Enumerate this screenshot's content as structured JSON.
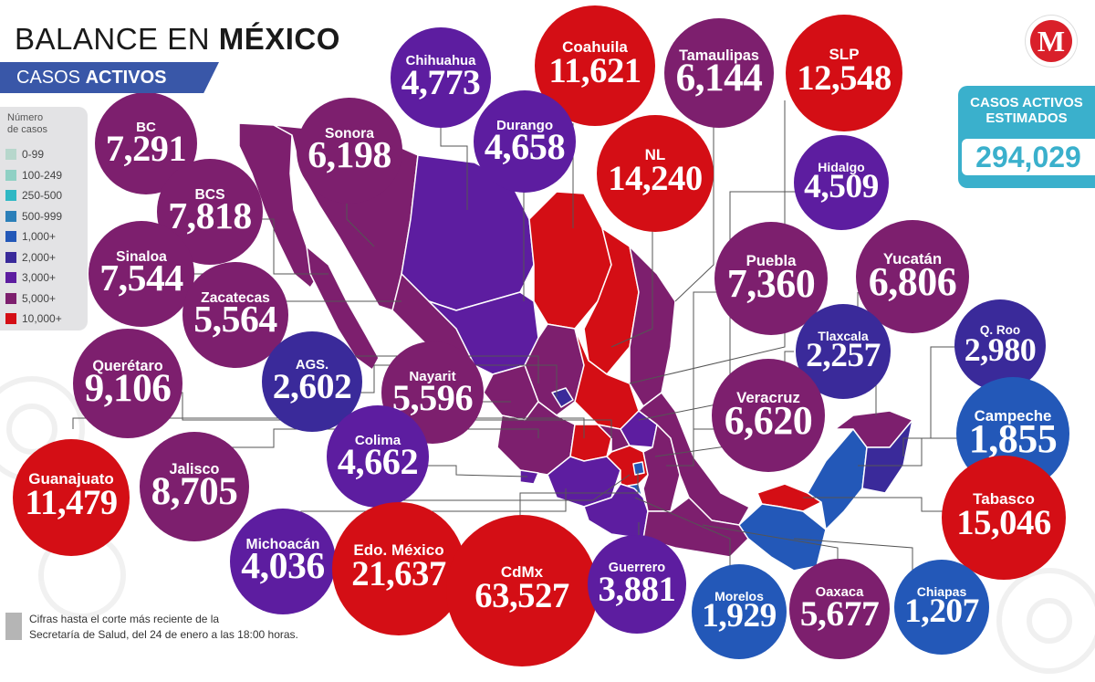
{
  "header": {
    "title_prefix": "BALANCE EN ",
    "title_bold": "MÉXICO",
    "subtitle_prefix": "CASOS ",
    "subtitle_bold": "ACTIVOS",
    "subtitle_bg": "#3957a8"
  },
  "legend": {
    "title": "Número\nde casos",
    "items": [
      {
        "label": "0-99",
        "color": "#b7d7cc"
      },
      {
        "label": "100-249",
        "color": "#8fd0c4"
      },
      {
        "label": "250-500",
        "color": "#2fb8c4"
      },
      {
        "label": "500-999",
        "color": "#2b7fb9"
      },
      {
        "label": "1,000+",
        "color": "#2358b8"
      },
      {
        "label": "2,000+",
        "color": "#3a2a9a"
      },
      {
        "label": "3,000+",
        "color": "#5d1da0"
      },
      {
        "label": "5,000+",
        "color": "#7d1f6e"
      },
      {
        "label": "10,000+",
        "color": "#d40e15"
      }
    ]
  },
  "estimate": {
    "label": "CASOS ACTIVOS\nESTIMADOS",
    "value": "294,029",
    "color": "#3ab0cc"
  },
  "logo": {
    "letter": "M",
    "color": "#d9202a"
  },
  "footnote": "Cifras hasta el corte más reciente de la\nSecretaría de Salud, del 24 de enero a las 18:00 horas.",
  "colors": {
    "c1000": "#2358b8",
    "c2000": "#3a2a9a",
    "c3000": "#5d1da0",
    "c5000": "#7d1f6e",
    "c10000": "#d40e15"
  },
  "states": [
    {
      "key": "bc",
      "name": "BC",
      "value": "7,291",
      "cases": 7291,
      "bracket": "c5000"
    },
    {
      "key": "bcs",
      "name": "BCS",
      "value": "7,818",
      "cases": 7818,
      "bracket": "c5000"
    },
    {
      "key": "sonora",
      "name": "Sonora",
      "value": "6,198",
      "cases": 6198,
      "bracket": "c5000"
    },
    {
      "key": "chihuahua",
      "name": "Chihuahua",
      "value": "4,773",
      "cases": 4773,
      "bracket": "c3000"
    },
    {
      "key": "coahuila",
      "name": "Coahuila",
      "value": "11,621",
      "cases": 11621,
      "bracket": "c10000"
    },
    {
      "key": "tamaulipas",
      "name": "Tamaulipas",
      "value": "6,144",
      "cases": 6144,
      "bracket": "c5000"
    },
    {
      "key": "slp",
      "name": "SLP",
      "value": "12,548",
      "cases": 12548,
      "bracket": "c10000"
    },
    {
      "key": "durango",
      "name": "Durango",
      "value": "4,658",
      "cases": 4658,
      "bracket": "c3000"
    },
    {
      "key": "nl",
      "name": "NL",
      "value": "14,240",
      "cases": 14240,
      "bracket": "c10000"
    },
    {
      "key": "hidalgo",
      "name": "Hidalgo",
      "value": "4,509",
      "cases": 4509,
      "bracket": "c3000"
    },
    {
      "key": "sinaloa",
      "name": "Sinaloa",
      "value": "7,544",
      "cases": 7544,
      "bracket": "c5000"
    },
    {
      "key": "zacatecas",
      "name": "Zacatecas",
      "value": "5,564",
      "cases": 5564,
      "bracket": "c5000"
    },
    {
      "key": "puebla",
      "name": "Puebla",
      "value": "7,360",
      "cases": 7360,
      "bracket": "c5000"
    },
    {
      "key": "yucatan",
      "name": "Yucatán",
      "value": "6,806",
      "cases": 6806,
      "bracket": "c5000"
    },
    {
      "key": "queretaro",
      "name": "Querétaro",
      "value": "9,106",
      "cases": 9106,
      "bracket": "c5000"
    },
    {
      "key": "ags",
      "name": "AGS.",
      "value": "2,602",
      "cases": 2602,
      "bracket": "c2000"
    },
    {
      "key": "nayarit",
      "name": "Nayarit",
      "value": "5,596",
      "cases": 5596,
      "bracket": "c5000"
    },
    {
      "key": "tlaxcala",
      "name": "Tlaxcala",
      "value": "2,257",
      "cases": 2257,
      "bracket": "c2000"
    },
    {
      "key": "qroo",
      "name": "Q. Roo",
      "value": "2,980",
      "cases": 2980,
      "bracket": "c2000"
    },
    {
      "key": "veracruz",
      "name": "Veracruz",
      "value": "6,620",
      "cases": 6620,
      "bracket": "c5000"
    },
    {
      "key": "campeche",
      "name": "Campeche",
      "value": "1,855",
      "cases": 1855,
      "bracket": "c1000"
    },
    {
      "key": "colima",
      "name": "Colima",
      "value": "4,662",
      "cases": 4662,
      "bracket": "c3000"
    },
    {
      "key": "guanajuato",
      "name": "Guanajuato",
      "value": "11,479",
      "cases": 11479,
      "bracket": "c10000"
    },
    {
      "key": "jalisco",
      "name": "Jalisco",
      "value": "8,705",
      "cases": 8705,
      "bracket": "c5000"
    },
    {
      "key": "tabasco",
      "name": "Tabasco",
      "value": "15,046",
      "cases": 15046,
      "bracket": "c10000"
    },
    {
      "key": "michoacan",
      "name": "Michoacán",
      "value": "4,036",
      "cases": 4036,
      "bracket": "c3000"
    },
    {
      "key": "edomex",
      "name": "Edo. México",
      "value": "21,637",
      "cases": 21637,
      "bracket": "c10000"
    },
    {
      "key": "cdmx",
      "name": "CdMx",
      "value": "63,527",
      "cases": 63527,
      "bracket": "c10000"
    },
    {
      "key": "guerrero",
      "name": "Guerrero",
      "value": "3,881",
      "cases": 3881,
      "bracket": "c3000"
    },
    {
      "key": "morelos",
      "name": "Morelos",
      "value": "1,929",
      "cases": 1929,
      "bracket": "c1000"
    },
    {
      "key": "oaxaca",
      "name": "Oaxaca",
      "value": "5,677",
      "cases": 5677,
      "bracket": "c5000"
    },
    {
      "key": "chiapas",
      "name": "Chiapas",
      "value": "1,207",
      "cases": 1207,
      "bracket": "c1000"
    }
  ]
}
